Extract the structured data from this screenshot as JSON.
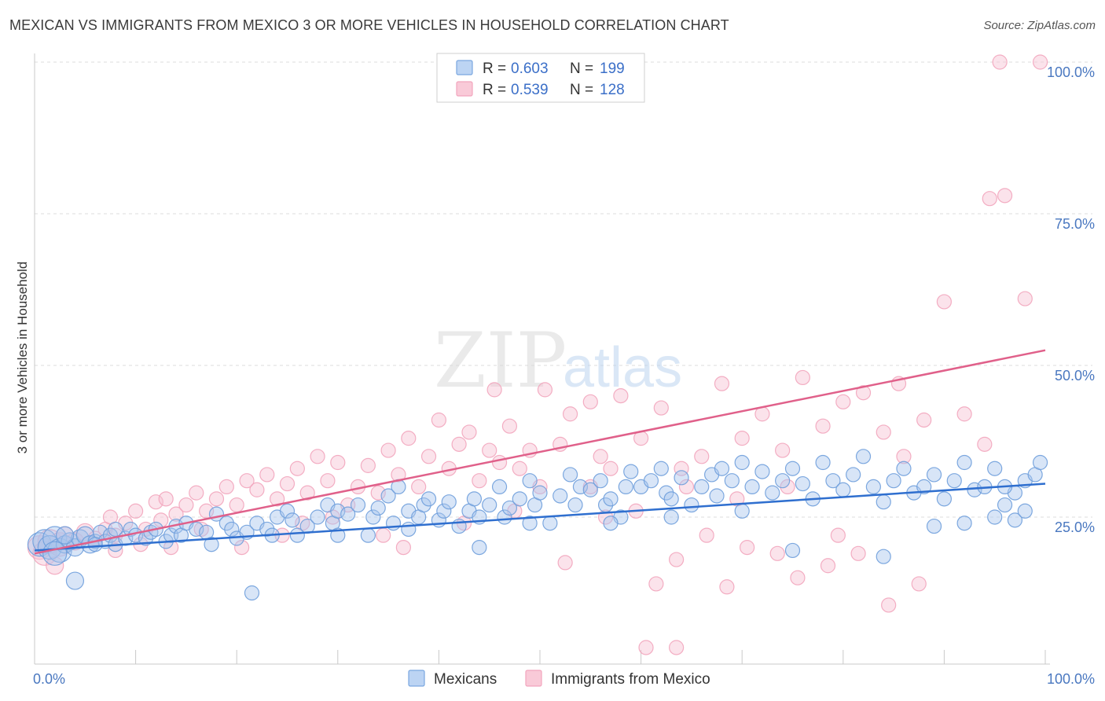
{
  "header": {
    "title": "MEXICAN VS IMMIGRANTS FROM MEXICO 3 OR MORE VEHICLES IN HOUSEHOLD CORRELATION CHART",
    "source": "Source: ZipAtlas.com"
  },
  "watermark": {
    "zip": "ZIP",
    "atlas": "atlas"
  },
  "colors": {
    "blue": "#7aa7e0",
    "blue_line": "#2f6fcf",
    "pink": "#f2a5bd",
    "pink_line": "#e0608a",
    "axis_text": "#4a78c0"
  },
  "chart_data": {
    "type": "scatter",
    "title": "MEXICAN VS IMMIGRANTS FROM MEXICO 3 OR MORE VEHICLES IN HOUSEHOLD CORRELATION CHART",
    "xlabel": "",
    "ylabel": "3 or more Vehicles in Household",
    "xlim": [
      0,
      100
    ],
    "ylim": [
      0,
      105
    ],
    "x_tick_labels": [
      "0.0%",
      "100.0%"
    ],
    "y_tick_labels": [
      "25.0%",
      "50.0%",
      "75.0%",
      "100.0%"
    ],
    "y_ticks": [
      25,
      50,
      75,
      100
    ],
    "grid": "horizontal dashed",
    "legend_position": "top-center",
    "legend": [
      {
        "r_label": "R =",
        "r": "0.603",
        "n_label": "N =",
        "n": "199"
      },
      {
        "r_label": "R =",
        "r": "0.539",
        "n_label": "N =",
        "n": "128"
      }
    ],
    "series": [
      {
        "name": "Mexicans",
        "color": "#7aa7e0",
        "trend": {
          "x": [
            0,
            100
          ],
          "y": [
            19.5,
            30.5
          ]
        },
        "points": [
          [
            0.5,
            20.5
          ],
          [
            1,
            21
          ],
          [
            1.5,
            20
          ],
          [
            2,
            21.5
          ],
          [
            2.5,
            19.5
          ],
          [
            3,
            20.5
          ],
          [
            3.5,
            21
          ],
          [
            4,
            20
          ],
          [
            4.5,
            21.5
          ],
          [
            5,
            22
          ],
          [
            5.5,
            20.5
          ],
          [
            6,
            21
          ],
          [
            6.5,
            22.5
          ],
          [
            7,
            21
          ],
          [
            7.5,
            22
          ],
          [
            8,
            20.5
          ],
          [
            9,
            21.5
          ],
          [
            9.5,
            23
          ],
          [
            10,
            22
          ],
          [
            11,
            21.5
          ],
          [
            11.5,
            22.5
          ],
          [
            12,
            23
          ],
          [
            13,
            21
          ],
          [
            13.5,
            22
          ],
          [
            14,
            23.5
          ],
          [
            14.5,
            22
          ],
          [
            15,
            24
          ],
          [
            16,
            23
          ],
          [
            17,
            22.5
          ],
          [
            17.5,
            20.5
          ],
          [
            18,
            25.5
          ],
          [
            19,
            24
          ],
          [
            19.5,
            23
          ],
          [
            20,
            21.5
          ],
          [
            21,
            22.5
          ],
          [
            22,
            24
          ],
          [
            23,
            23
          ],
          [
            23.5,
            22
          ],
          [
            24,
            25
          ],
          [
            25,
            26
          ],
          [
            25.5,
            24.5
          ],
          [
            26,
            22
          ],
          [
            27,
            23.5
          ],
          [
            28,
            25
          ],
          [
            29,
            27
          ],
          [
            29.5,
            24
          ],
          [
            30,
            26
          ],
          [
            31,
            25.5
          ],
          [
            32,
            27
          ],
          [
            33,
            22
          ],
          [
            33.5,
            25
          ],
          [
            34,
            26.5
          ],
          [
            35,
            28.5
          ],
          [
            35.5,
            24
          ],
          [
            36,
            30
          ],
          [
            37,
            26
          ],
          [
            38,
            25
          ],
          [
            38.5,
            27
          ],
          [
            39,
            28
          ],
          [
            40,
            24.5
          ],
          [
            40.5,
            26
          ],
          [
            41,
            27.5
          ],
          [
            42,
            23.5
          ],
          [
            43,
            26
          ],
          [
            43.5,
            28
          ],
          [
            44,
            25
          ],
          [
            45,
            27
          ],
          [
            46,
            30
          ],
          [
            46.5,
            25
          ],
          [
            47,
            26.5
          ],
          [
            48,
            28
          ],
          [
            49,
            31
          ],
          [
            49.5,
            27
          ],
          [
            50,
            29
          ],
          [
            51,
            24
          ],
          [
            52,
            28.5
          ],
          [
            53,
            32
          ],
          [
            53.5,
            27
          ],
          [
            54,
            30
          ],
          [
            55,
            29.5
          ],
          [
            56,
            31
          ],
          [
            56.5,
            27
          ],
          [
            57,
            28
          ],
          [
            58,
            25
          ],
          [
            58.5,
            30
          ],
          [
            59,
            32.5
          ],
          [
            60,
            30
          ],
          [
            61,
            31
          ],
          [
            62,
            33
          ],
          [
            62.5,
            29
          ],
          [
            63,
            28
          ],
          [
            64,
            31.5
          ],
          [
            65,
            27
          ],
          [
            66,
            30
          ],
          [
            67,
            32
          ],
          [
            67.5,
            28.5
          ],
          [
            68,
            33
          ],
          [
            69,
            31
          ],
          [
            70,
            34
          ],
          [
            71,
            30
          ],
          [
            72,
            32.5
          ],
          [
            73,
            29
          ],
          [
            74,
            31
          ],
          [
            75,
            33
          ],
          [
            76,
            30.5
          ],
          [
            77,
            28
          ],
          [
            78,
            34
          ],
          [
            79,
            31
          ],
          [
            80,
            29.5
          ],
          [
            81,
            32
          ],
          [
            82,
            35
          ],
          [
            83,
            30
          ],
          [
            84,
            27.5
          ],
          [
            85,
            31
          ],
          [
            86,
            33
          ],
          [
            87,
            29
          ],
          [
            88,
            30
          ],
          [
            89,
            32
          ],
          [
            90,
            28
          ],
          [
            91,
            31
          ],
          [
            92,
            34
          ],
          [
            93,
            29.5
          ],
          [
            94,
            30
          ],
          [
            95,
            33
          ],
          [
            96,
            27
          ],
          [
            97,
            29
          ],
          [
            98,
            31
          ],
          [
            99,
            32
          ],
          [
            99.5,
            34
          ],
          [
            4,
            14.5
          ],
          [
            21.5,
            12.5
          ],
          [
            30,
            22
          ],
          [
            37,
            23
          ],
          [
            44,
            20
          ],
          [
            49,
            24
          ],
          [
            57,
            24
          ],
          [
            63,
            25
          ],
          [
            70,
            26
          ],
          [
            75,
            19.5
          ],
          [
            84,
            18.5
          ],
          [
            89,
            23.5
          ],
          [
            92,
            24
          ],
          [
            95,
            25
          ],
          [
            97,
            24.5
          ],
          [
            98,
            26
          ],
          [
            96,
            30
          ],
          [
            2,
            19
          ],
          [
            3,
            22
          ],
          [
            6,
            20.5
          ],
          [
            8,
            23
          ]
        ]
      },
      {
        "name": "Immigrants from Mexico",
        "color": "#f2a5bd",
        "trend": {
          "x": [
            0,
            100
          ],
          "y": [
            19,
            52.5
          ]
        },
        "points": [
          [
            0.5,
            20
          ],
          [
            1,
            19
          ],
          [
            1.5,
            21
          ],
          [
            2,
            17
          ],
          [
            2.5,
            20.5
          ],
          [
            3,
            22
          ],
          [
            4,
            21
          ],
          [
            5,
            22.5
          ],
          [
            6,
            21.5
          ],
          [
            7,
            23
          ],
          [
            7.5,
            25
          ],
          [
            8,
            22
          ],
          [
            9,
            24
          ],
          [
            10,
            26
          ],
          [
            11,
            23
          ],
          [
            12,
            27.5
          ],
          [
            12.5,
            24.5
          ],
          [
            13,
            28
          ],
          [
            14,
            25.5
          ],
          [
            15,
            27
          ],
          [
            16,
            29
          ],
          [
            17,
            26
          ],
          [
            18,
            28
          ],
          [
            19,
            30
          ],
          [
            20,
            27
          ],
          [
            21,
            31
          ],
          [
            22,
            29.5
          ],
          [
            23,
            32
          ],
          [
            24,
            28
          ],
          [
            25,
            30.5
          ],
          [
            26,
            33
          ],
          [
            27,
            29
          ],
          [
            28,
            35
          ],
          [
            29,
            31
          ],
          [
            30,
            34
          ],
          [
            31,
            27
          ],
          [
            32,
            30
          ],
          [
            33,
            33.5
          ],
          [
            34,
            29
          ],
          [
            35,
            36
          ],
          [
            36,
            32
          ],
          [
            37,
            38
          ],
          [
            38,
            30
          ],
          [
            39,
            35
          ],
          [
            40,
            41
          ],
          [
            41,
            33
          ],
          [
            42,
            37
          ],
          [
            43,
            39
          ],
          [
            44,
            31
          ],
          [
            45,
            36
          ],
          [
            46,
            34
          ],
          [
            47,
            40
          ],
          [
            48,
            33
          ],
          [
            49,
            36
          ],
          [
            50,
            30
          ],
          [
            52,
            37
          ],
          [
            53,
            42
          ],
          [
            55,
            44
          ],
          [
            56,
            35
          ],
          [
            58,
            45
          ],
          [
            60,
            38
          ],
          [
            62,
            43
          ],
          [
            64,
            33
          ],
          [
            66,
            35
          ],
          [
            68,
            47
          ],
          [
            70,
            38
          ],
          [
            72,
            42
          ],
          [
            74,
            36
          ],
          [
            76,
            48
          ],
          [
            78,
            40
          ],
          [
            80,
            44
          ],
          [
            82,
            45.5
          ],
          [
            84,
            39
          ],
          [
            86,
            35
          ],
          [
            88,
            41
          ],
          [
            90,
            60.5
          ],
          [
            92,
            42
          ],
          [
            94,
            37
          ],
          [
            96,
            78
          ],
          [
            98,
            61
          ],
          [
            8,
            19.5
          ],
          [
            10.5,
            20.5
          ],
          [
            13.5,
            20
          ],
          [
            16.5,
            23
          ],
          [
            20.5,
            20
          ],
          [
            24.5,
            22
          ],
          [
            26.5,
            24
          ],
          [
            29.5,
            25
          ],
          [
            34.5,
            22
          ],
          [
            36.5,
            20
          ],
          [
            42.5,
            24
          ],
          [
            47.5,
            26
          ],
          [
            52.5,
            17.5
          ],
          [
            56.5,
            25
          ],
          [
            61.5,
            14
          ],
          [
            63.5,
            18
          ],
          [
            66.5,
            22
          ],
          [
            68.5,
            13.5
          ],
          [
            70.5,
            20
          ],
          [
            73.5,
            19
          ],
          [
            75.5,
            15
          ],
          [
            78.5,
            17
          ],
          [
            81.5,
            19
          ],
          [
            84.5,
            10.5
          ],
          [
            87.5,
            14
          ],
          [
            59.5,
            26
          ],
          [
            64.5,
            30
          ],
          [
            69.5,
            28
          ],
          [
            74.5,
            30
          ],
          [
            79.5,
            22
          ],
          [
            95.5,
            100
          ],
          [
            99.5,
            100
          ],
          [
            94.5,
            77.5
          ],
          [
            85.5,
            47
          ],
          [
            50.5,
            46
          ],
          [
            45.5,
            46
          ],
          [
            60.5,
            3.5
          ],
          [
            63.5,
            3.5
          ],
          [
            55,
            30
          ],
          [
            57,
            33
          ]
        ]
      }
    ]
  },
  "bottom_legend": {
    "items": [
      "Mexicans",
      "Immigrants from Mexico"
    ]
  }
}
